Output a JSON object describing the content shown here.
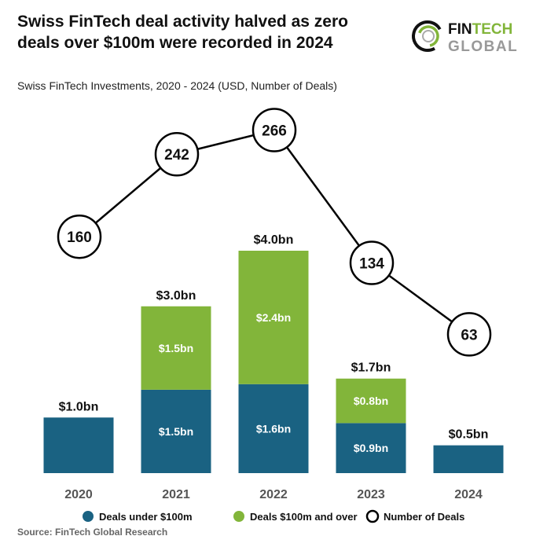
{
  "title": "Swiss FinTech deal activity halved as zero deals over $100m were recorded in 2024",
  "source": "Source: FinTech Global Research",
  "logo": {
    "line1": "FIN",
    "line1b": "TECH",
    "line2": "GLOBAL"
  },
  "colors": {
    "under": "#1a6282",
    "over": "#82b53a",
    "line": "#000000"
  },
  "chart_data": {
    "type": "bar+line",
    "title": "Swiss FinTech Investments, 2020 - 2024 (USD, Number of Deals)",
    "categories": [
      "2020",
      "2021",
      "2022",
      "2023",
      "2024"
    ],
    "series": [
      {
        "name": "Deals under $100m",
        "kind": "stacked-bar",
        "values": [
          1.0,
          1.5,
          1.6,
          0.9,
          0.5
        ],
        "labels": [
          "",
          "$1.5bn",
          "$1.6bn",
          "$0.9bn",
          ""
        ]
      },
      {
        "name": "Deals $100m and over",
        "kind": "stacked-bar",
        "values": [
          0,
          1.5,
          2.4,
          0.8,
          0
        ],
        "labels": [
          "",
          "$1.5bn",
          "$2.4bn",
          "$0.8bn",
          ""
        ]
      },
      {
        "name": "Number of Deals",
        "kind": "line",
        "values": [
          160,
          242,
          266,
          134,
          63
        ]
      }
    ],
    "totals": [
      "$1.0bn",
      "$3.0bn",
      "$4.0bn",
      "$1.7bn",
      "$0.5bn"
    ],
    "total_values": [
      1.0,
      3.0,
      4.0,
      1.7,
      0.5
    ],
    "legend_position": "bottom",
    "grid": false
  }
}
